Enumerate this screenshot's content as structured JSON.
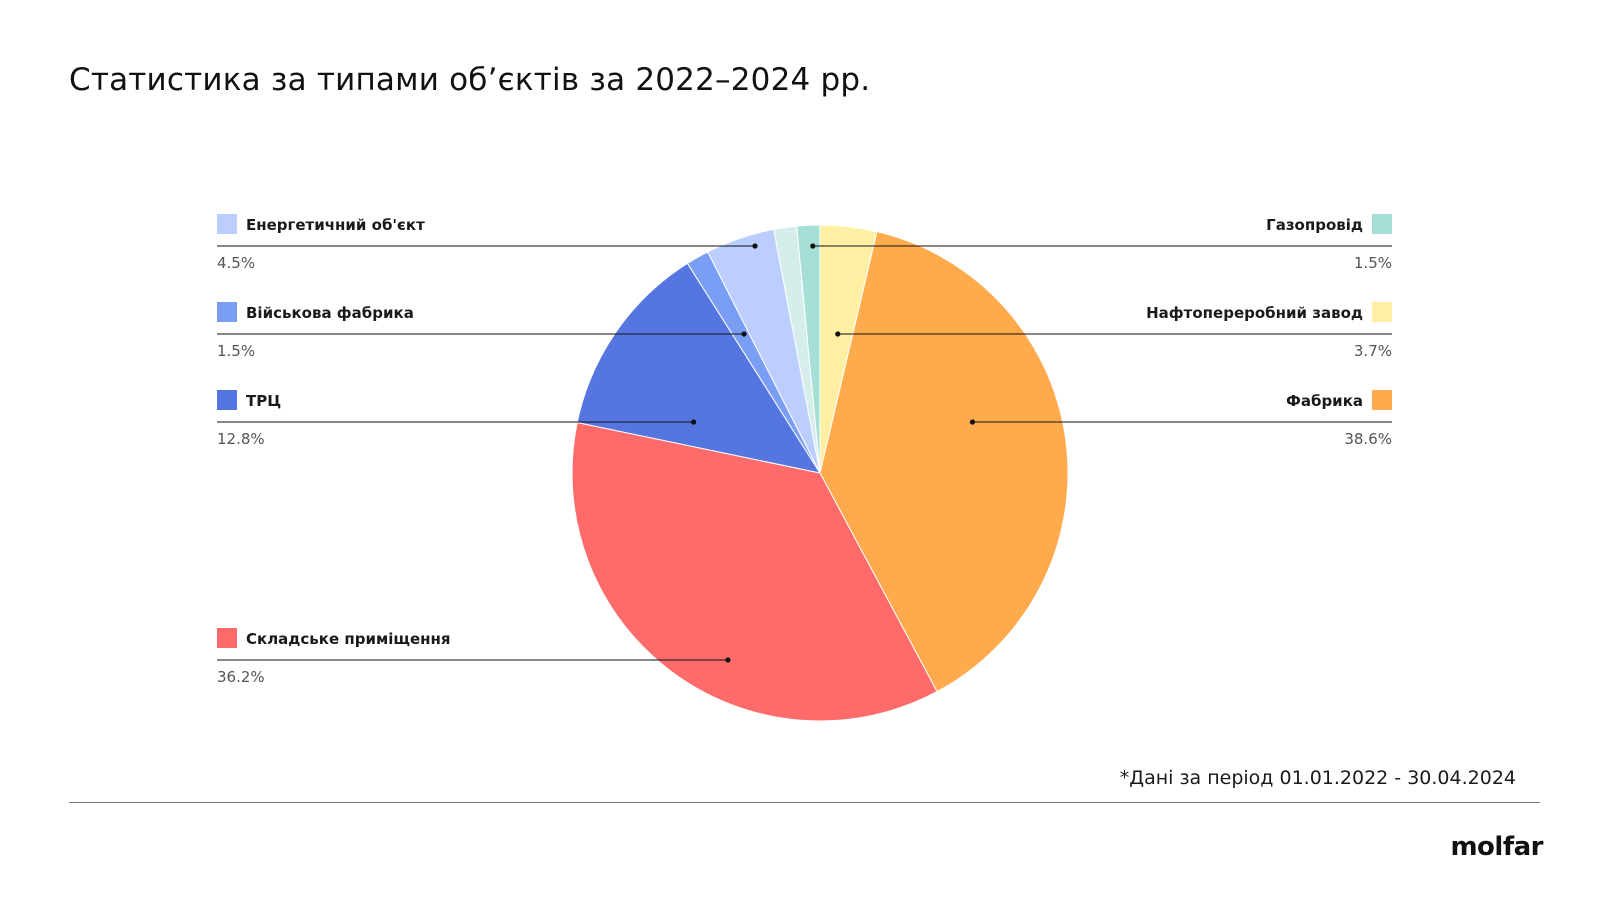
{
  "title": "Статистика за типами обʼєктів за 2022–2024 рр.",
  "footnote": "*Дані за період 01.01.2022 - 30.04.2024",
  "logo": "molfar",
  "chart_data": {
    "type": "pie",
    "title": "Статистика за типами обʼєктів за 2022–2024 рр.",
    "start_angle_deg": 0,
    "direction": "clockwise",
    "slices": [
      {
        "label": "Нафтопереробний завод",
        "value": 3.7,
        "value_text": "3.7%",
        "color": "#FFEFA3",
        "side": "right"
      },
      {
        "label": "Фабрика",
        "value": 38.6,
        "value_text": "38.6%",
        "color": "#FFAB4D",
        "side": "right"
      },
      {
        "label": "Складське приміщення",
        "value": 36.2,
        "value_text": "36.2%",
        "color": "#FF6B6B",
        "side": "left"
      },
      {
        "label": "ТРЦ",
        "value": 12.8,
        "value_text": "12.8%",
        "color": "#5576E0",
        "side": "left"
      },
      {
        "label": "Військова фабрика",
        "value": 1.5,
        "value_text": "1.5%",
        "color": "#7B9EF5",
        "side": "left"
      },
      {
        "label": "Енергетичний об'єкт",
        "value": 4.5,
        "value_text": "4.5%",
        "color": "#BCCDFF",
        "side": "left"
      },
      {
        "label": "",
        "value": 1.5,
        "color": "#D5EEEC",
        "side": "none"
      },
      {
        "label": "Газопровід",
        "value": 1.5,
        "value_text": "1.5%",
        "color": "#A6DFD5",
        "side": "right"
      }
    ],
    "legend_order_left": [
      "Енергетичний об'єкт",
      "Військова фабрика",
      "ТРЦ",
      "Складське приміщення"
    ],
    "legend_order_right": [
      "Газопровід",
      "Нафтопереробний завод",
      "Фабрика"
    ],
    "legend_placement": "left and right of pie, leader lines"
  }
}
